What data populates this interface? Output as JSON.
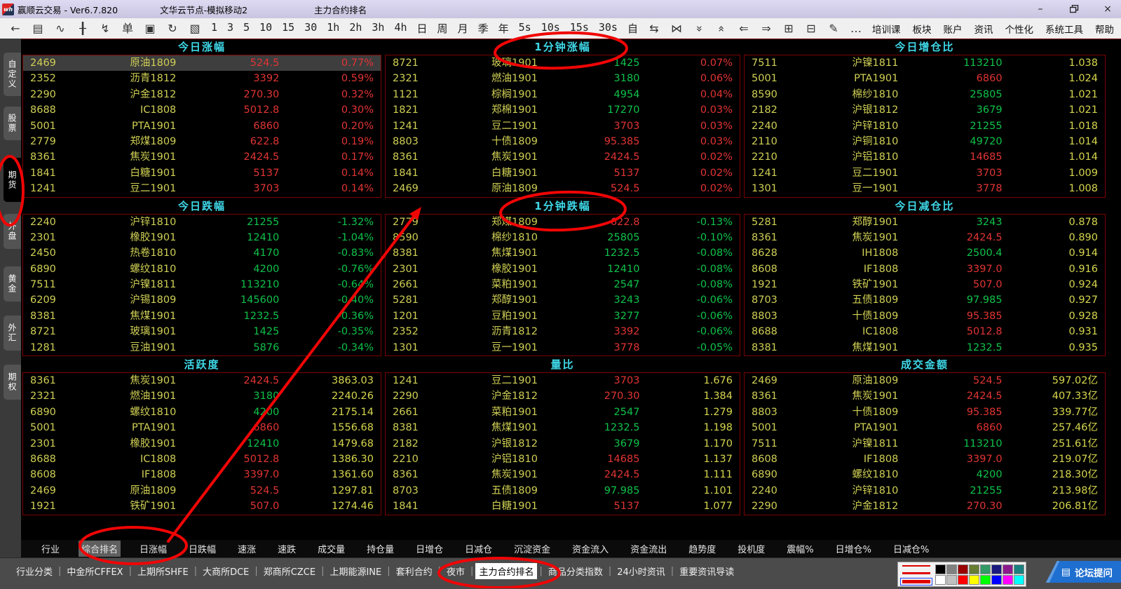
{
  "window": {
    "app_title": "赢顺云交易  -  Ver6.7.820",
    "node_title": "文华云节点-模拟移动2",
    "page_title": "主力合约排名",
    "controls": {
      "minimize": "–",
      "restore": "❐",
      "close": "×"
    }
  },
  "toolbar": {
    "left_icons": [
      {
        "name": "back-icon",
        "glyph": "←"
      },
      {
        "name": "report-icon",
        "glyph": "▤"
      },
      {
        "name": "line-chart-icon",
        "glyph": "∿"
      },
      {
        "name": "candlestick-icon",
        "glyph": "╂"
      },
      {
        "name": "flash-order-icon",
        "glyph": "↯"
      },
      {
        "name": "order-panel-icon",
        "glyph": "单"
      },
      {
        "name": "save-icon",
        "glyph": "▣"
      },
      {
        "name": "refresh-icon",
        "glyph": "↻"
      },
      {
        "name": "kline-window-icon",
        "glyph": "▧"
      }
    ],
    "periods": [
      "1",
      "3",
      "5",
      "10",
      "15",
      "30",
      "1h",
      "2h",
      "3h",
      "4h",
      "日",
      "周",
      "月",
      "季",
      "年",
      "5s",
      "10s",
      "15s",
      "30s",
      "自"
    ],
    "right_icons": [
      {
        "name": "expand-horizontal-icon",
        "glyph": "⇆"
      },
      {
        "name": "compress-horizontal-icon",
        "glyph": "⋈"
      },
      {
        "name": "double-chevron-down-icon",
        "glyph": "«",
        "rot": "down"
      },
      {
        "name": "double-chevron-up-icon",
        "glyph": "«",
        "rot": "up"
      },
      {
        "name": "page-left-icon",
        "glyph": "⇐"
      },
      {
        "name": "page-right-icon",
        "glyph": "⇒"
      },
      {
        "name": "grid-layout-icon",
        "glyph": "⊞"
      },
      {
        "name": "split-pane-icon",
        "glyph": "⊟"
      },
      {
        "name": "draw-pen-icon",
        "glyph": "✎"
      },
      {
        "name": "more-icon",
        "glyph": "…"
      }
    ],
    "menu": [
      "培训课",
      "板块",
      "账户",
      "资讯",
      "个性化",
      "系统工具",
      "帮助"
    ]
  },
  "sidebar": {
    "items": [
      {
        "label": "自定义",
        "active": false
      },
      {
        "label": "股票",
        "active": false
      },
      {
        "label": "期货",
        "active": true
      },
      {
        "label": "外盘",
        "active": false
      },
      {
        "label": "黄金",
        "active": false
      },
      {
        "label": "外汇",
        "active": false
      },
      {
        "label": "期权",
        "active": false
      }
    ]
  },
  "panels": [
    {
      "title": "今日涨幅",
      "rows": [
        [
          "2469",
          "原油1809",
          "524.5",
          "u",
          "0.77%",
          "u",
          true
        ],
        [
          "2352",
          "沥青1812",
          "3392",
          "u",
          "0.59%",
          "u",
          false
        ],
        [
          "2290",
          "沪金1812",
          "270.30",
          "u",
          "0.32%",
          "u",
          false
        ],
        [
          "8688",
          "IC1808",
          "5012.8",
          "u",
          "0.30%",
          "u",
          false
        ],
        [
          "5001",
          "PTA1901",
          "6860",
          "u",
          "0.20%",
          "u",
          false
        ],
        [
          "2779",
          "郑煤1809",
          "622.8",
          "u",
          "0.19%",
          "u",
          false
        ],
        [
          "8361",
          "焦炭1901",
          "2424.5",
          "u",
          "0.17%",
          "u",
          false
        ],
        [
          "1841",
          "白糖1901",
          "5137",
          "u",
          "0.14%",
          "u",
          false
        ],
        [
          "1241",
          "豆二1901",
          "3703",
          "u",
          "0.14%",
          "u",
          false
        ]
      ]
    },
    {
      "title": "1分钟涨幅",
      "rows": [
        [
          "8721",
          "玻璃1901",
          "1425",
          "d",
          "0.07%",
          "u",
          false
        ],
        [
          "2321",
          "燃油1901",
          "3180",
          "d",
          "0.06%",
          "u",
          false
        ],
        [
          "1121",
          "棕榈1901",
          "4954",
          "d",
          "0.04%",
          "u",
          false
        ],
        [
          "1821",
          "郑棉1901",
          "17270",
          "d",
          "0.03%",
          "u",
          false
        ],
        [
          "1241",
          "豆二1901",
          "3703",
          "u",
          "0.03%",
          "u",
          false
        ],
        [
          "8803",
          "十债1809",
          "95.385",
          "u",
          "0.03%",
          "u",
          false
        ],
        [
          "8361",
          "焦炭1901",
          "2424.5",
          "u",
          "0.02%",
          "u",
          false
        ],
        [
          "1841",
          "白糖1901",
          "5137",
          "u",
          "0.02%",
          "u",
          false
        ],
        [
          "2469",
          "原油1809",
          "524.5",
          "u",
          "0.02%",
          "u",
          false
        ]
      ]
    },
    {
      "title": "今日增仓比",
      "rows": [
        [
          "7511",
          "沪镍1811",
          "113210",
          "d",
          "1.038",
          "y",
          false
        ],
        [
          "5001",
          "PTA1901",
          "6860",
          "u",
          "1.024",
          "y",
          false
        ],
        [
          "8590",
          "棉纱1810",
          "25805",
          "d",
          "1.021",
          "y",
          false
        ],
        [
          "2182",
          "沪银1812",
          "3679",
          "d",
          "1.021",
          "y",
          false
        ],
        [
          "2240",
          "沪锌1810",
          "21255",
          "d",
          "1.018",
          "y",
          false
        ],
        [
          "2110",
          "沪铜1810",
          "49720",
          "d",
          "1.014",
          "y",
          false
        ],
        [
          "2210",
          "沪铝1810",
          "14685",
          "u",
          "1.014",
          "y",
          false
        ],
        [
          "1241",
          "豆二1901",
          "3703",
          "u",
          "1.009",
          "y",
          false
        ],
        [
          "1301",
          "豆一1901",
          "3778",
          "u",
          "1.008",
          "y",
          false
        ]
      ]
    },
    {
      "title": "今日跌幅",
      "rows": [
        [
          "2240",
          "沪锌1810",
          "21255",
          "d",
          "-1.32%",
          "d",
          false
        ],
        [
          "2301",
          "橡胶1901",
          "12410",
          "d",
          "-1.04%",
          "d",
          false
        ],
        [
          "2450",
          "热卷1810",
          "4170",
          "d",
          "-0.83%",
          "d",
          false
        ],
        [
          "6890",
          "螺纹1810",
          "4200",
          "d",
          "-0.76%",
          "d",
          false
        ],
        [
          "7511",
          "沪镍1811",
          "113210",
          "d",
          "-0.64%",
          "d",
          false
        ],
        [
          "6209",
          "沪锡1809",
          "145600",
          "d",
          "-0.40%",
          "d",
          false
        ],
        [
          "8381",
          "焦煤1901",
          "1232.5",
          "d",
          "-0.36%",
          "d",
          false
        ],
        [
          "8721",
          "玻璃1901",
          "1425",
          "d",
          "-0.35%",
          "d",
          false
        ],
        [
          "1281",
          "豆油1901",
          "5876",
          "d",
          "-0.34%",
          "d",
          false
        ]
      ]
    },
    {
      "title": "1分钟跌幅",
      "rows": [
        [
          "2779",
          "郑煤1809",
          "622.8",
          "u",
          "-0.13%",
          "d",
          false
        ],
        [
          "8590",
          "棉纱1810",
          "25805",
          "d",
          "-0.10%",
          "d",
          false
        ],
        [
          "8381",
          "焦煤1901",
          "1232.5",
          "d",
          "-0.08%",
          "d",
          false
        ],
        [
          "2301",
          "橡胶1901",
          "12410",
          "d",
          "-0.08%",
          "d",
          false
        ],
        [
          "2661",
          "菜粕1901",
          "2547",
          "d",
          "-0.08%",
          "d",
          false
        ],
        [
          "5281",
          "郑醇1901",
          "3243",
          "d",
          "-0.06%",
          "d",
          false
        ],
        [
          "1201",
          "豆粕1901",
          "3277",
          "d",
          "-0.06%",
          "d",
          false
        ],
        [
          "2352",
          "沥青1812",
          "3392",
          "u",
          "-0.06%",
          "d",
          false
        ],
        [
          "1301",
          "豆一1901",
          "3778",
          "u",
          "-0.05%",
          "d",
          false
        ]
      ]
    },
    {
      "title": "今日减仓比",
      "rows": [
        [
          "5281",
          "郑醇1901",
          "3243",
          "d",
          "0.878",
          "y",
          false
        ],
        [
          "8361",
          "焦炭1901",
          "2424.5",
          "u",
          "0.890",
          "y",
          false
        ],
        [
          "8628",
          "IH1808",
          "2500.4",
          "d",
          "0.914",
          "y",
          false
        ],
        [
          "8608",
          "IF1808",
          "3397.0",
          "u",
          "0.916",
          "y",
          false
        ],
        [
          "1921",
          "铁矿1901",
          "507.0",
          "u",
          "0.924",
          "y",
          false
        ],
        [
          "8703",
          "五债1809",
          "97.985",
          "d",
          "0.927",
          "y",
          false
        ],
        [
          "8803",
          "十债1809",
          "95.385",
          "u",
          "0.928",
          "y",
          false
        ],
        [
          "8688",
          "IC1808",
          "5012.8",
          "u",
          "0.931",
          "y",
          false
        ],
        [
          "8381",
          "焦煤1901",
          "1232.5",
          "d",
          "0.935",
          "y",
          false
        ]
      ]
    },
    {
      "title": "活跃度",
      "rows": [
        [
          "8361",
          "焦炭1901",
          "2424.5",
          "u",
          "3863.03",
          "y",
          false
        ],
        [
          "2321",
          "燃油1901",
          "3180",
          "d",
          "2240.26",
          "y",
          false
        ],
        [
          "6890",
          "螺纹1810",
          "4200",
          "d",
          "2175.14",
          "y",
          false
        ],
        [
          "5001",
          "PTA1901",
          "6860",
          "u",
          "1556.68",
          "y",
          false
        ],
        [
          "2301",
          "橡胶1901",
          "12410",
          "d",
          "1479.68",
          "y",
          false
        ],
        [
          "8688",
          "IC1808",
          "5012.8",
          "u",
          "1386.30",
          "y",
          false
        ],
        [
          "8608",
          "IF1808",
          "3397.0",
          "u",
          "1361.60",
          "y",
          false
        ],
        [
          "2469",
          "原油1809",
          "524.5",
          "u",
          "1297.81",
          "y",
          false
        ],
        [
          "1921",
          "铁矿1901",
          "507.0",
          "u",
          "1274.46",
          "y",
          false
        ]
      ]
    },
    {
      "title": "量比",
      "rows": [
        [
          "1241",
          "豆二1901",
          "3703",
          "u",
          "1.676",
          "y",
          false
        ],
        [
          "2290",
          "沪金1812",
          "270.30",
          "u",
          "1.384",
          "y",
          false
        ],
        [
          "2661",
          "菜粕1901",
          "2547",
          "d",
          "1.279",
          "y",
          false
        ],
        [
          "8381",
          "焦煤1901",
          "1232.5",
          "d",
          "1.198",
          "y",
          false
        ],
        [
          "2182",
          "沪银1812",
          "3679",
          "d",
          "1.170",
          "y",
          false
        ],
        [
          "2210",
          "沪铝1810",
          "14685",
          "u",
          "1.137",
          "y",
          false
        ],
        [
          "8361",
          "焦炭1901",
          "2424.5",
          "u",
          "1.111",
          "y",
          false
        ],
        [
          "8703",
          "五债1809",
          "97.985",
          "d",
          "1.101",
          "y",
          false
        ],
        [
          "1841",
          "白糖1901",
          "5137",
          "u",
          "1.077",
          "y",
          false
        ]
      ]
    },
    {
      "title": "成交金额",
      "rows": [
        [
          "2469",
          "原油1809",
          "524.5",
          "u",
          "597.02亿",
          "y",
          false
        ],
        [
          "8361",
          "焦炭1901",
          "2424.5",
          "u",
          "407.33亿",
          "y",
          false
        ],
        [
          "8803",
          "十债1809",
          "95.385",
          "u",
          "339.77亿",
          "y",
          false
        ],
        [
          "5001",
          "PTA1901",
          "6860",
          "u",
          "257.46亿",
          "y",
          false
        ],
        [
          "7511",
          "沪镍1811",
          "113210",
          "d",
          "251.61亿",
          "y",
          false
        ],
        [
          "8608",
          "IF1808",
          "3397.0",
          "u",
          "219.07亿",
          "y",
          false
        ],
        [
          "6890",
          "螺纹1810",
          "4200",
          "d",
          "218.30亿",
          "y",
          false
        ],
        [
          "2240",
          "沪锌1810",
          "21255",
          "d",
          "213.98亿",
          "y",
          false
        ],
        [
          "2290",
          "沪金1812",
          "270.30",
          "u",
          "206.81亿",
          "y",
          false
        ]
      ]
    }
  ],
  "bottom_tabs": {
    "selected": "综合排名",
    "items": [
      "行业",
      "综合排名",
      "日涨幅",
      "日跌幅",
      "速涨",
      "速跌",
      "成交量",
      "持仓量",
      "日增仓",
      "日减仓",
      "沉淀资金",
      "资金流入",
      "资金流出",
      "趋势度",
      "投机度",
      "震幅%",
      "日增仓%",
      "日减仓%"
    ]
  },
  "status_bar": {
    "selected": "主力合约排名",
    "items": [
      "行业分类",
      "中金所CFFEX",
      "上期所SHFE",
      "大商所DCE",
      "郑商所CZCE",
      "上期能源INE",
      "套利合约",
      "夜市",
      "主力合约排名",
      "商品分类指数",
      "24小时资讯",
      "重要资讯导读"
    ]
  },
  "forum_button": {
    "label": "论坛提问",
    "icon": "▤",
    "color": "#1e6fd0"
  },
  "palette": {
    "colors": [
      "#000000",
      "#808080",
      "#990000",
      "#667d33",
      "#339966",
      "#1a1a80",
      "#8c1a8c",
      "#1a8080",
      "#ffffff",
      "#c0c0c0",
      "#ff0000",
      "#ffff00",
      "#00ff00",
      "#0000ff",
      "#ff00ff",
      "#00ffff"
    ],
    "line_widths": [
      2,
      3,
      5
    ]
  },
  "annotations": {
    "color": "#f00505",
    "circled": [
      "期货",
      "1分钟涨幅",
      "1分钟跌幅",
      "综合排名",
      "主力合约排名"
    ],
    "arrow": "综合排名 → 1分钟跌幅"
  },
  "text_colors": {
    "up": "#e23434",
    "down": "#0fc24a",
    "neutral": "#d6d64e",
    "header": "#3fd8e8",
    "border": "#7c0202"
  }
}
